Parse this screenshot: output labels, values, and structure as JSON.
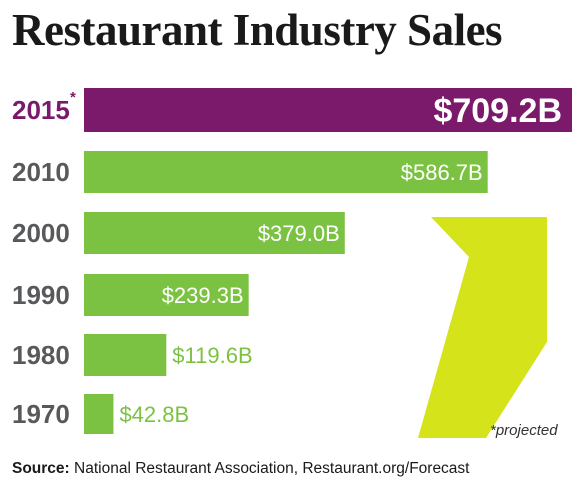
{
  "chart_data": {
    "type": "bar",
    "orientation": "horizontal",
    "title": "Restaurant Industry Sales",
    "categories": [
      "2015",
      "2010",
      "2000",
      "1990",
      "1980",
      "1970"
    ],
    "values": [
      709.2,
      586.7,
      379.0,
      239.3,
      119.6,
      42.8
    ],
    "value_labels": [
      "$709.2B",
      "$586.7B",
      "$379.0B",
      "$239.3B",
      "$119.6B",
      "$42.8B"
    ],
    "category_marks": [
      "*",
      "",
      "",
      "",
      "",
      ""
    ],
    "units": "billion USD",
    "xlim": [
      0,
      709.2
    ],
    "colors": {
      "highlight": "#7b1a6b",
      "bar": "#7cc242",
      "year_label": "#58595b",
      "arrow": "#d4e31a"
    }
  },
  "footnote": "*projected",
  "source": {
    "label": "Source:",
    "text": "National Restaurant Association, Restaurant.org/Forecast"
  }
}
